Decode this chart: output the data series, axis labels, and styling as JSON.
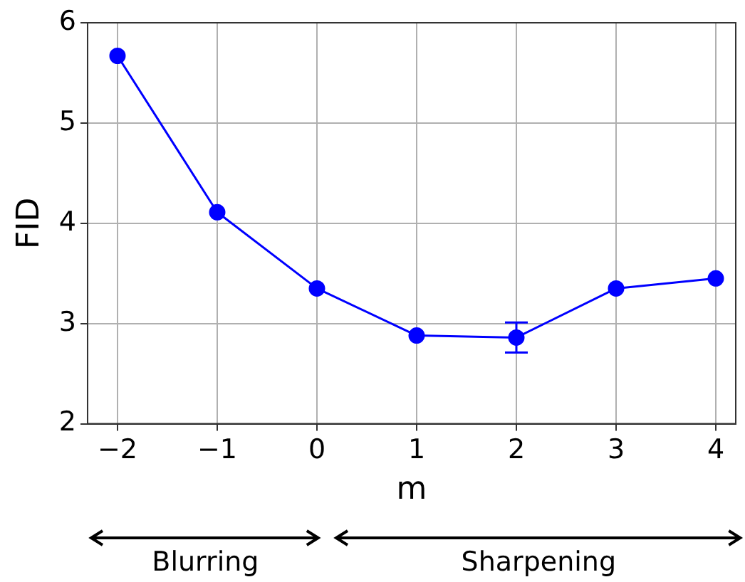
{
  "chart_data": {
    "type": "line",
    "xlabel": "m",
    "ylabel": "FID",
    "x": [
      -2,
      -1,
      0,
      1,
      2,
      3,
      4
    ],
    "series": [
      {
        "color": "#0000ff",
        "values": [
          5.67,
          4.11,
          3.35,
          2.88,
          2.86,
          3.35,
          3.45
        ],
        "errors": [
          null,
          null,
          null,
          null,
          [
            2.71,
            3.01
          ],
          null,
          null
        ]
      }
    ],
    "xlim": [
      -2.3,
      4.2
    ],
    "xticks": [
      -2,
      -1,
      0,
      1,
      2,
      3,
      4
    ],
    "ylim": [
      2,
      6
    ],
    "yticks": [
      2,
      3,
      4,
      5,
      6
    ],
    "grid": true,
    "legend": false,
    "marker": "circle",
    "line_style": "solid",
    "annotations": [
      "Blurring",
      "Sharpening"
    ]
  }
}
